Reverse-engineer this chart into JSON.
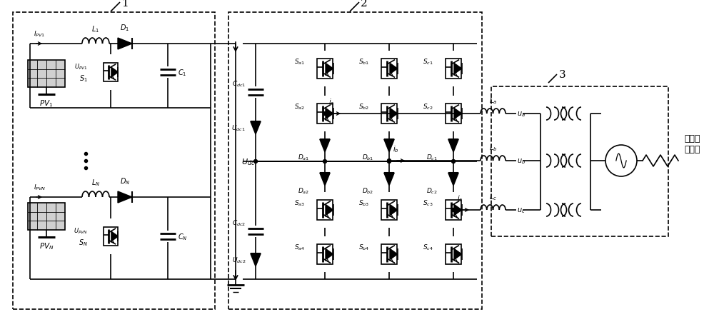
{
  "bg_color": "#ffffff",
  "figsize": [
    10.0,
    4.52
  ],
  "dpi": 100,
  "chinese_text": "中压交\n流电网"
}
